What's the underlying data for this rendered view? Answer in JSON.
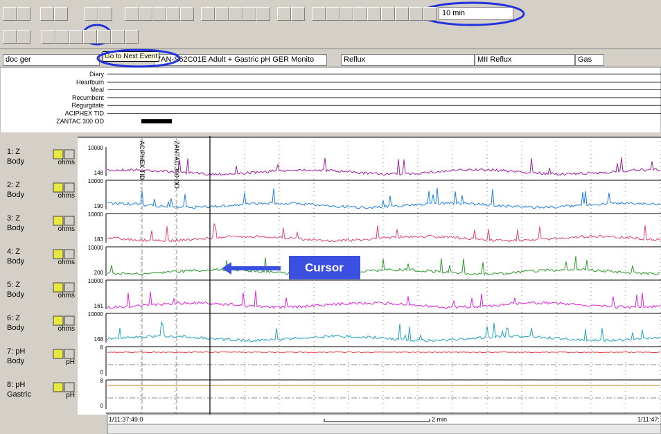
{
  "toolbar": {
    "timescale": "10 min",
    "tooltip": "Go to Next Event"
  },
  "header": {
    "patient": "doc ger",
    "study": "7AN-S62C01E  Adult + Gastric pH GER Monito",
    "columns": [
      "Reflux",
      "MII Reflux",
      "Gas"
    ]
  },
  "events": {
    "labels": [
      "Diary",
      "Heartburn",
      "Meal",
      "Recumbent",
      "Regurgitate",
      "ACIPHEX TID",
      "ZANTAC 300 OD"
    ]
  },
  "channels": [
    {
      "name": "1: Z",
      "site": "Body",
      "unit": "ohms",
      "scale_top": 10000,
      "scale_bottom": 148,
      "color": "#9b1fa0"
    },
    {
      "name": "2: Z",
      "site": "Body",
      "unit": "ohms",
      "scale_top": 10000,
      "scale_bottom": 190,
      "color": "#1f7fe0"
    },
    {
      "name": "3: Z",
      "site": "Body",
      "unit": "ohms",
      "scale_top": 10000,
      "scale_bottom": 183,
      "color": "#e0407a"
    },
    {
      "name": "4: Z",
      "site": "Body",
      "unit": "ohms",
      "scale_top": 10000,
      "scale_bottom": 200,
      "color": "#2a9a2a"
    },
    {
      "name": "5: Z",
      "site": "Body",
      "unit": "ohms",
      "scale_top": 10000,
      "scale_bottom": 161,
      "color": "#e020e0"
    },
    {
      "name": "6: Z",
      "site": "Body",
      "unit": "ohms",
      "scale_top": 10000,
      "scale_bottom": 168,
      "color": "#20a0c0"
    },
    {
      "name": "7: pH",
      "site": "Body",
      "unit": "pH",
      "scale_top": 8,
      "scale_bottom": 0,
      "color": "#e04040"
    },
    {
      "name": "8: pH",
      "site": "Gastric",
      "unit": "pH",
      "scale_top": 8,
      "scale_bottom": 0,
      "color": "#d08020"
    }
  ],
  "markers": [
    "ACIPHEX TID",
    "ZANTAC 300 OD"
  ],
  "cursor_label": "Cursor",
  "timebar": {
    "start": "1/11:37:49.0",
    "span": "2 min",
    "end": "1/11:47:"
  }
}
